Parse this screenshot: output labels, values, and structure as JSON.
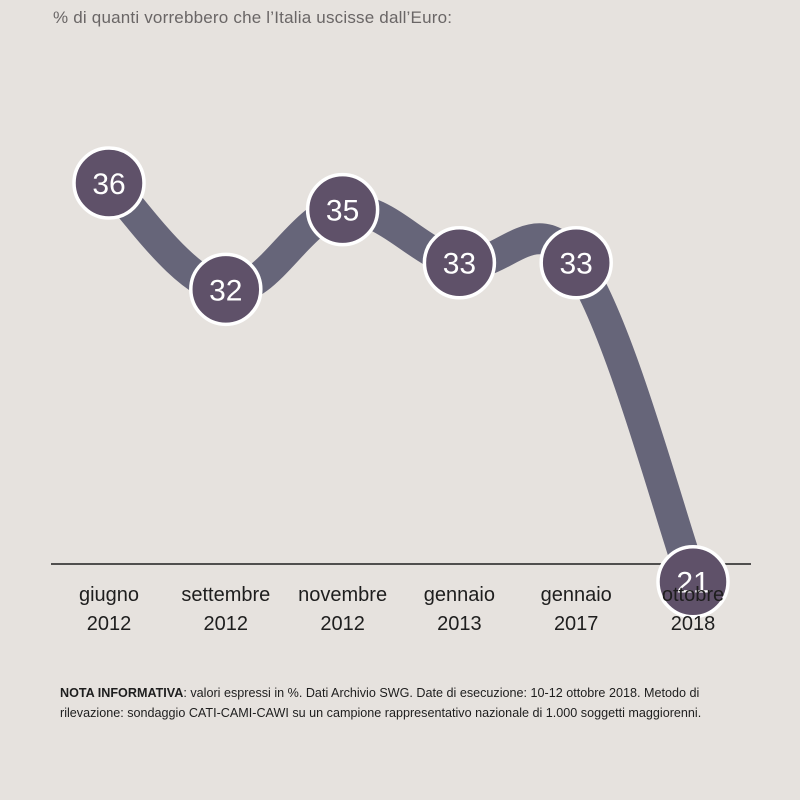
{
  "chart_data": {
    "type": "line",
    "title": "% di quanti vorrebbero che l’Italia uscisse dall’Euro:",
    "categories": [
      [
        "giugno",
        "2012"
      ],
      [
        "settembre",
        "2012"
      ],
      [
        "novembre",
        "2012"
      ],
      [
        "gennaio",
        "2013"
      ],
      [
        "gennaio",
        "2017"
      ],
      [
        "ottobre",
        "2018"
      ]
    ],
    "series": [
      {
        "values": [
          36,
          32,
          35,
          33,
          33,
          21
        ]
      }
    ],
    "line_color": "#666579",
    "marker_fill": "#5f5169",
    "marker_stroke": "#ffffff",
    "baseline_color": "#1e1e1e"
  },
  "note": {
    "label": "NOTA INFORMATIVA",
    "text": ": valori espressi in %. Dati Archivio SWG. Date di esecuzione: 10-12 ottobre 2018. Metodo di rilevazione: sondaggio CATI-CAMI-CAWI su un campione rappresentativo nazionale di 1.000 soggetti maggiorenni."
  }
}
